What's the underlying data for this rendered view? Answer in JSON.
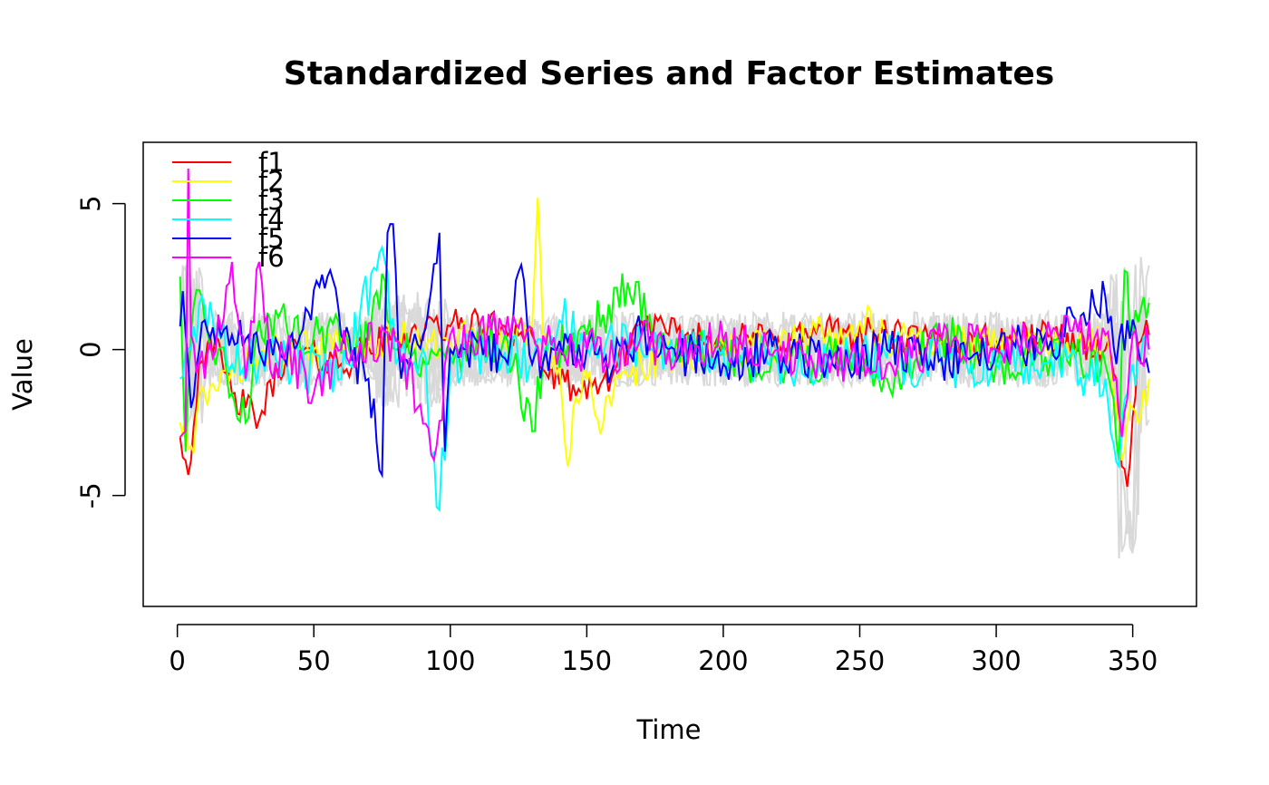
{
  "chart_data": {
    "type": "line",
    "title": "Standardized Series and Factor Estimates",
    "xlabel": "Time",
    "ylabel": "Value",
    "xlim": [
      1,
      356
    ],
    "ylim": [
      -8.8,
      7.1
    ],
    "x_ticks": [
      0,
      50,
      100,
      150,
      200,
      250,
      300,
      350
    ],
    "y_ticks": [
      -5,
      0,
      5
    ],
    "grid": false,
    "legend_position": "top-left",
    "background_series": {
      "color": "#d9d9d9",
      "count": 6,
      "note": "standardized input series drawn in light gray behind the factors"
    },
    "series": [
      {
        "name": "f1",
        "color": "#ff0000",
        "keypoints": [
          [
            1,
            -3
          ],
          [
            3,
            -3.8
          ],
          [
            5,
            -3.8
          ],
          [
            8,
            -0.5
          ],
          [
            12,
            0.5
          ],
          [
            20,
            -1.5
          ],
          [
            25,
            -2.0
          ],
          [
            30,
            -2.4
          ],
          [
            40,
            0.0
          ],
          [
            60,
            -0.5
          ],
          [
            80,
            0.5
          ],
          [
            100,
            0.8
          ],
          [
            120,
            0.8
          ],
          [
            130,
            0.5
          ],
          [
            135,
            -0.8
          ],
          [
            140,
            -1.2
          ],
          [
            145,
            -1.2
          ],
          [
            150,
            -1.7
          ],
          [
            155,
            -1.2
          ],
          [
            160,
            -0.7
          ],
          [
            170,
            1.0
          ],
          [
            180,
            0.5
          ],
          [
            200,
            0.3
          ],
          [
            220,
            0.4
          ],
          [
            240,
            0.6
          ],
          [
            260,
            0.5
          ],
          [
            280,
            0.2
          ],
          [
            300,
            0.3
          ],
          [
            320,
            0.5
          ],
          [
            340,
            0.0
          ],
          [
            344,
            -1.0
          ],
          [
            346,
            -4.0
          ],
          [
            348,
            -4.7
          ],
          [
            350,
            -2.3
          ],
          [
            352,
            0.2
          ],
          [
            356,
            0.5
          ]
        ],
        "noise": 0.6
      },
      {
        "name": "f2",
        "color": "#ffff00",
        "keypoints": [
          [
            1,
            -2.5
          ],
          [
            5,
            -3.3
          ],
          [
            10,
            -1.5
          ],
          [
            20,
            -0.5
          ],
          [
            30,
            -0.3
          ],
          [
            50,
            0.0
          ],
          [
            80,
            0.5
          ],
          [
            100,
            0.3
          ],
          [
            120,
            0.3
          ],
          [
            130,
            0.8
          ],
          [
            132,
            5.2
          ],
          [
            134,
            0.5
          ],
          [
            140,
            -0.5
          ],
          [
            143,
            -4.0
          ],
          [
            145,
            -2.0
          ],
          [
            150,
            -1.0
          ],
          [
            155,
            -2.9
          ],
          [
            160,
            -1.3
          ],
          [
            170,
            -0.5
          ],
          [
            200,
            0.2
          ],
          [
            220,
            0.0
          ],
          [
            250,
            1.0
          ],
          [
            260,
            0.5
          ],
          [
            300,
            0.0
          ],
          [
            320,
            0.0
          ],
          [
            340,
            0.5
          ],
          [
            346,
            -3.8
          ],
          [
            350,
            -2.0
          ],
          [
            353,
            -2.3
          ],
          [
            356,
            -1.0
          ]
        ],
        "noise": 0.7
      },
      {
        "name": "f3",
        "color": "#00ff00",
        "keypoints": [
          [
            1,
            2.5
          ],
          [
            3,
            -3.5
          ],
          [
            6,
            1.5
          ],
          [
            10,
            1.0
          ],
          [
            15,
            0.0
          ],
          [
            20,
            -1.5
          ],
          [
            25,
            -2.5
          ],
          [
            30,
            1.0
          ],
          [
            40,
            0.8
          ],
          [
            50,
            0.5
          ],
          [
            70,
            0.3
          ],
          [
            75,
            2.6
          ],
          [
            80,
            0.0
          ],
          [
            100,
            -0.3
          ],
          [
            120,
            0.5
          ],
          [
            130,
            -2.8
          ],
          [
            135,
            0.0
          ],
          [
            150,
            0.5
          ],
          [
            165,
            2.3
          ],
          [
            180,
            0.0
          ],
          [
            200,
            -0.2
          ],
          [
            220,
            -0.5
          ],
          [
            240,
            -0.3
          ],
          [
            260,
            -1.0
          ],
          [
            280,
            0.5
          ],
          [
            300,
            -0.5
          ],
          [
            320,
            -0.3
          ],
          [
            340,
            -0.5
          ],
          [
            345,
            -3.8
          ],
          [
            347,
            2.7
          ],
          [
            350,
            0.5
          ],
          [
            354,
            1.8
          ],
          [
            356,
            1.6
          ]
        ],
        "noise": 0.8
      },
      {
        "name": "f4",
        "color": "#00ffff",
        "keypoints": [
          [
            1,
            -1.0
          ],
          [
            5,
            0.0
          ],
          [
            10,
            1.5
          ],
          [
            20,
            -0.5
          ],
          [
            40,
            -0.3
          ],
          [
            60,
            -1.0
          ],
          [
            75,
            3.5
          ],
          [
            80,
            -0.5
          ],
          [
            90,
            0.0
          ],
          [
            96,
            -5.5
          ],
          [
            100,
            -0.5
          ],
          [
            110,
            0.0
          ],
          [
            130,
            -0.5
          ],
          [
            140,
            1.0
          ],
          [
            160,
            0.0
          ],
          [
            180,
            0.0
          ],
          [
            200,
            0.0
          ],
          [
            220,
            -0.5
          ],
          [
            240,
            -0.5
          ],
          [
            260,
            -0.3
          ],
          [
            280,
            -0.5
          ],
          [
            300,
            -0.5
          ],
          [
            320,
            -0.3
          ],
          [
            340,
            -1.0
          ],
          [
            345,
            -4.0
          ],
          [
            350,
            -0.5
          ],
          [
            356,
            0.0
          ]
        ],
        "noise": 0.9
      },
      {
        "name": "f5",
        "color": "#0000ff",
        "keypoints": [
          [
            1,
            0.8
          ],
          [
            2,
            2.0
          ],
          [
            5,
            -2.0
          ],
          [
            10,
            1.0
          ],
          [
            20,
            0.5
          ],
          [
            40,
            -0.5
          ],
          [
            55,
            2.5
          ],
          [
            60,
            0.5
          ],
          [
            70,
            -1.0
          ],
          [
            75,
            -4.3
          ],
          [
            77,
            4.0
          ],
          [
            79,
            4.3
          ],
          [
            82,
            -1.0
          ],
          [
            90,
            0.5
          ],
          [
            96,
            4.0
          ],
          [
            98,
            -3.5
          ],
          [
            100,
            0.0
          ],
          [
            120,
            -0.3
          ],
          [
            126,
            2.9
          ],
          [
            130,
            -0.5
          ],
          [
            150,
            0.0
          ],
          [
            160,
            -0.5
          ],
          [
            170,
            0.5
          ],
          [
            180,
            0.0
          ],
          [
            200,
            -0.5
          ],
          [
            220,
            0.0
          ],
          [
            240,
            -0.5
          ],
          [
            260,
            0.0
          ],
          [
            280,
            -0.3
          ],
          [
            300,
            0.0
          ],
          [
            320,
            0.3
          ],
          [
            340,
            1.8
          ],
          [
            344,
            -0.5
          ],
          [
            348,
            1.0
          ],
          [
            352,
            0.0
          ],
          [
            356,
            -0.8
          ]
        ],
        "noise": 0.8
      },
      {
        "name": "f6",
        "color": "#ff00ff",
        "keypoints": [
          [
            1,
            -3.0
          ],
          [
            3,
            -2.8
          ],
          [
            4,
            6.2
          ],
          [
            5,
            0.5
          ],
          [
            10,
            -1.0
          ],
          [
            20,
            3.0
          ],
          [
            25,
            -1.0
          ],
          [
            30,
            3.0
          ],
          [
            35,
            -1.0
          ],
          [
            40,
            0.0
          ],
          [
            50,
            -1.5
          ],
          [
            60,
            0.0
          ],
          [
            80,
            0.3
          ],
          [
            95,
            -3.3
          ],
          [
            100,
            0.5
          ],
          [
            120,
            0.5
          ],
          [
            140,
            0.0
          ],
          [
            150,
            0.0
          ],
          [
            160,
            -0.5
          ],
          [
            170,
            0.5
          ],
          [
            180,
            0.0
          ],
          [
            200,
            0.3
          ],
          [
            220,
            0.0
          ],
          [
            240,
            -0.3
          ],
          [
            260,
            -0.5
          ],
          [
            280,
            0.3
          ],
          [
            300,
            0.0
          ],
          [
            320,
            0.5
          ],
          [
            340,
            0.5
          ],
          [
            344,
            -1.0
          ],
          [
            346,
            -3.0
          ],
          [
            350,
            0.5
          ],
          [
            356,
            0.0
          ]
        ],
        "noise": 0.8
      }
    ]
  }
}
